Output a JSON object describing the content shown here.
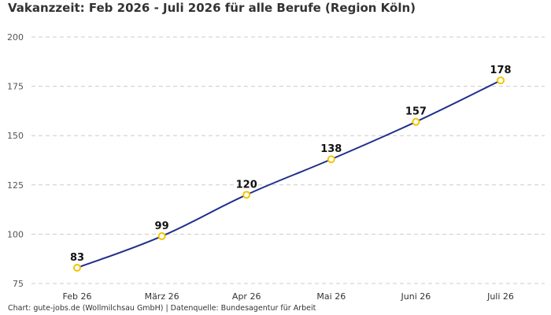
{
  "chart_data": {
    "type": "line",
    "title": "Vakanzzeit: Feb 2026 - Juli 2026 für alle Berufe (Region Köln)",
    "categories": [
      "Feb 26",
      "März 26",
      "Apr 26",
      "Mai 26",
      "Juni 26",
      "Juli 26"
    ],
    "series": [
      {
        "values": [
          83,
          99,
          120,
          138,
          157,
          178
        ]
      }
    ],
    "ylim": [
      75,
      200
    ],
    "yticks": [
      75,
      100,
      125,
      150,
      175,
      200
    ],
    "grid": true,
    "legend": "none",
    "colors": {
      "line": "#1f2f8a",
      "marker_stroke": "#f2c500",
      "marker_fill": "#ffffff",
      "grid": "#cccccc"
    }
  },
  "footer": "Chart: gute-jobs.de (Wollmilchsau GmbH) | Datenquelle: Bundesagentur für Arbeit"
}
